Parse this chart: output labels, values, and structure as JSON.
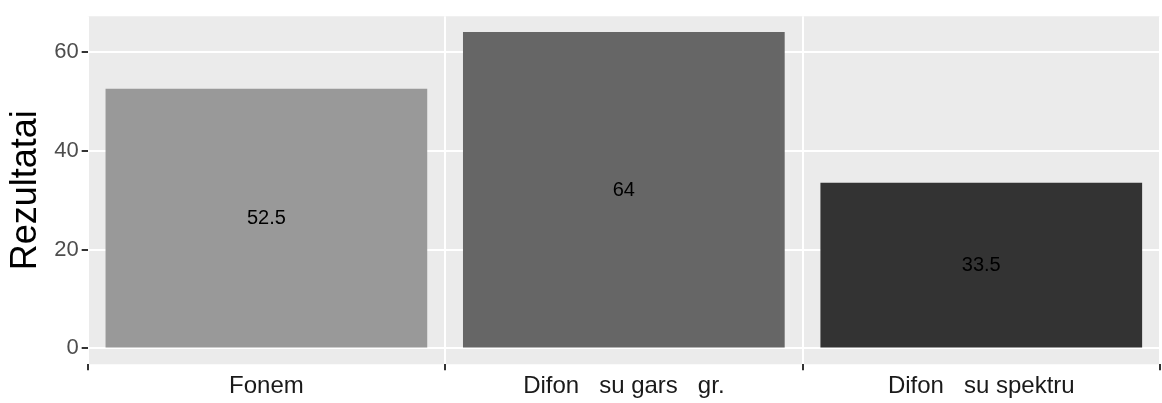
{
  "chart_data": {
    "type": "bar",
    "ylabel": "Rezultatai",
    "categories": [
      "Fonem",
      "Difon   su gars   gr.",
      "Difon   su spektru"
    ],
    "values": [
      52.5,
      64,
      33.5
    ],
    "colors": [
      "#999999",
      "#666666",
      "#333333"
    ],
    "ylim": [
      -3.2,
      67.2
    ],
    "yticks": [
      0,
      20,
      40,
      60
    ],
    "grid": true,
    "data_labels": true
  }
}
